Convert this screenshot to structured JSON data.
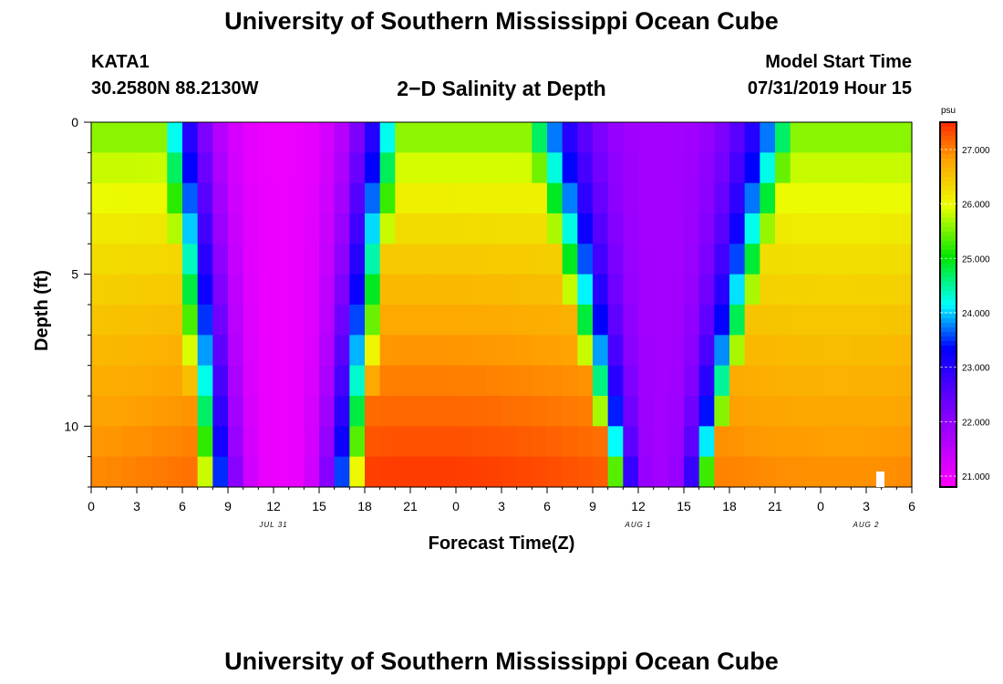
{
  "page": {
    "title_top": "University of Southern Mississippi Ocean Cube",
    "title_bottom": "University of Southern Mississippi Ocean Cube",
    "station_id": "KATA1",
    "station_coords": "30.2580N 88.2130W",
    "chart_title": "2−D Salinity at Depth",
    "model_start_label": "Model Start Time",
    "model_start_value": "07/31/2019 Hour 15"
  },
  "chart_data": {
    "type": "heatmap",
    "title": "2−D Salinity at Depth",
    "xlabel": "Forecast Time(Z)",
    "ylabel": "Depth (ft)",
    "x_range_hours": [
      0,
      54
    ],
    "y_range": [
      0,
      12
    ],
    "y_inverted": true,
    "x_tick_labels": [
      "0",
      "3",
      "6",
      "9",
      "12",
      "15",
      "18",
      "21",
      "0",
      "3",
      "6",
      "9",
      "12",
      "15",
      "18",
      "21",
      "0",
      "3",
      "6"
    ],
    "y_tick_labels": [
      "0",
      "5",
      "10"
    ],
    "y_tick_values": [
      0,
      5,
      10
    ],
    "date_labels": [
      {
        "label": "JUL 31",
        "hour": 12
      },
      {
        "label": "AUG 1",
        "hour": 36
      },
      {
        "label": "AUG 2",
        "hour": 51
      }
    ],
    "colorbar": {
      "unit": "psu",
      "min": 20.8,
      "max": 27.5,
      "tick_labels": [
        "27.000",
        "26.000",
        "25.000",
        "24.000",
        "23.000",
        "22.000",
        "21.000"
      ],
      "tick_values": [
        27,
        26,
        25,
        24,
        23,
        22,
        21
      ]
    },
    "depth_levels_ft": [
      0.5,
      1.5,
      2.5,
      3.5,
      4.5,
      5.5,
      6.5,
      7.5,
      8.5,
      9.5,
      10.5,
      11.5
    ],
    "time_step_hours": 1,
    "front_model": {
      "surface_background_psu": 25.3,
      "deep_background_psu": 27.2,
      "low1": {
        "center_hour": 12.5,
        "min_psu": 21.0,
        "half_width_surface_h": 8.0,
        "half_width_bottom_h": 5.3
      },
      "low2": {
        "center_hour": 37.5,
        "min_psu": 21.8,
        "half_width_surface_h": 9.0,
        "half_width_bottom_h": 3.2
      }
    }
  }
}
